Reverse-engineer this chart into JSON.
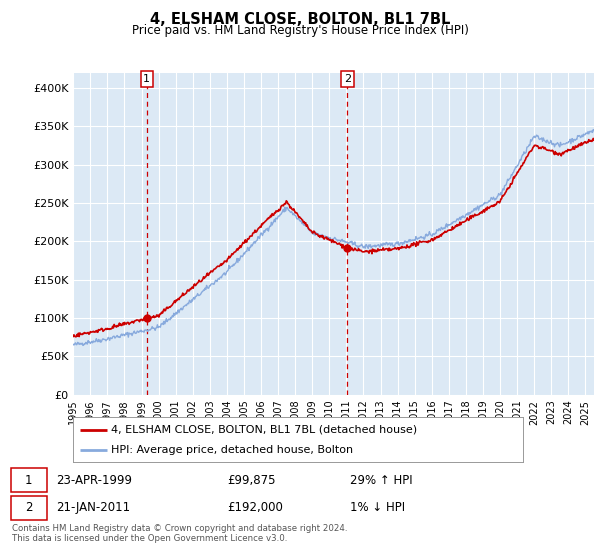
{
  "title": "4, ELSHAM CLOSE, BOLTON, BL1 7BL",
  "subtitle": "Price paid vs. HM Land Registry's House Price Index (HPI)",
  "ylabel_ticks": [
    "£0",
    "£50K",
    "£100K",
    "£150K",
    "£200K",
    "£250K",
    "£300K",
    "£350K",
    "£400K"
  ],
  "ylim": [
    0,
    420000
  ],
  "xlim_start": 1995.0,
  "xlim_end": 2025.5,
  "background_color": "#dce9f5",
  "grid_color": "#ffffff",
  "sale1_x": 1999.31,
  "sale1_y": 99875,
  "sale2_x": 2011.05,
  "sale2_y": 192000,
  "sale1_label": "23-APR-1999",
  "sale1_price": "£99,875",
  "sale1_hpi": "29% ↑ HPI",
  "sale2_label": "21-JAN-2011",
  "sale2_price": "£192,000",
  "sale2_hpi": "1% ↓ HPI",
  "legend_line1": "4, ELSHAM CLOSE, BOLTON, BL1 7BL (detached house)",
  "legend_line2": "HPI: Average price, detached house, Bolton",
  "footer": "Contains HM Land Registry data © Crown copyright and database right 2024.\nThis data is licensed under the Open Government Licence v3.0.",
  "line_color_price": "#cc0000",
  "line_color_hpi": "#88aadd",
  "vline_color": "#cc0000",
  "marker_color": "#cc0000",
  "fig_width": 6.0,
  "fig_height": 5.6,
  "dpi": 100
}
